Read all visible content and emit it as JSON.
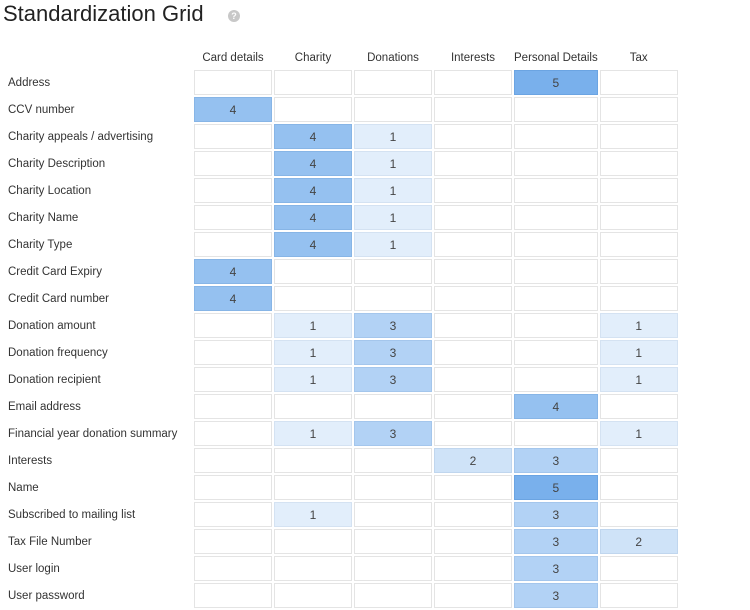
{
  "title": "Standardization Grid",
  "help_icon": "question-circle-icon",
  "columns": [
    "Card details",
    "Charity",
    "Donations",
    "Interests",
    "Personal Details",
    "Tax"
  ],
  "rows": [
    {
      "label": "Address",
      "values": [
        "",
        "",
        "",
        "",
        "5",
        ""
      ]
    },
    {
      "label": "CCV number",
      "values": [
        "4",
        "",
        "",
        "",
        "",
        ""
      ]
    },
    {
      "label": "Charity appeals / advertising",
      "values": [
        "",
        "4",
        "1",
        "",
        "",
        ""
      ]
    },
    {
      "label": "Charity Description",
      "values": [
        "",
        "4",
        "1",
        "",
        "",
        ""
      ]
    },
    {
      "label": "Charity Location",
      "values": [
        "",
        "4",
        "1",
        "",
        "",
        ""
      ]
    },
    {
      "label": "Charity Name",
      "values": [
        "",
        "4",
        "1",
        "",
        "",
        ""
      ]
    },
    {
      "label": "Charity Type",
      "values": [
        "",
        "4",
        "1",
        "",
        "",
        ""
      ]
    },
    {
      "label": "Credit Card Expiry",
      "values": [
        "4",
        "",
        "",
        "",
        "",
        ""
      ]
    },
    {
      "label": "Credit Card number",
      "values": [
        "4",
        "",
        "",
        "",
        "",
        ""
      ]
    },
    {
      "label": "Donation amount",
      "values": [
        "",
        "1",
        "3",
        "",
        "",
        "1"
      ]
    },
    {
      "label": "Donation frequency",
      "values": [
        "",
        "1",
        "3",
        "",
        "",
        "1"
      ]
    },
    {
      "label": "Donation recipient",
      "values": [
        "",
        "1",
        "3",
        "",
        "",
        "1"
      ]
    },
    {
      "label": "Email address",
      "values": [
        "",
        "",
        "",
        "",
        "4",
        ""
      ]
    },
    {
      "label": "Financial year donation summary",
      "values": [
        "",
        "1",
        "3",
        "",
        "",
        "1"
      ]
    },
    {
      "label": "Interests",
      "values": [
        "",
        "",
        "",
        "2",
        "3",
        ""
      ]
    },
    {
      "label": "Name",
      "values": [
        "",
        "",
        "",
        "",
        "5",
        ""
      ]
    },
    {
      "label": "Subscribed to mailing list",
      "values": [
        "",
        "1",
        "",
        "",
        "3",
        ""
      ]
    },
    {
      "label": "Tax File Number",
      "values": [
        "",
        "",
        "",
        "",
        "3",
        "2"
      ]
    },
    {
      "label": "User login",
      "values": [
        "",
        "",
        "",
        "",
        "3",
        ""
      ]
    },
    {
      "label": "User password",
      "values": [
        "",
        "",
        "",
        "",
        "3",
        ""
      ]
    }
  ]
}
